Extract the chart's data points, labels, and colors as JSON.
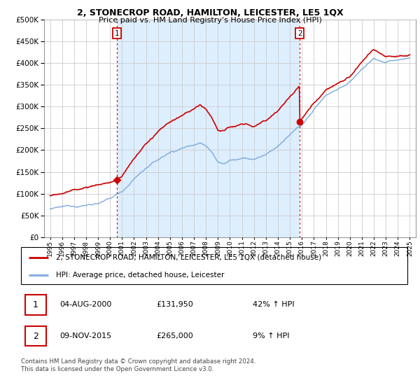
{
  "title": "2, STONECROP ROAD, HAMILTON, LEICESTER, LE5 1QX",
  "subtitle": "Price paid vs. HM Land Registry's House Price Index (HPI)",
  "hpi_label": "HPI: Average price, detached house, Leicester",
  "price_label": "2, STONECROP ROAD, HAMILTON, LEICESTER, LE5 1QX (detached house)",
  "sale1_date": "04-AUG-2000",
  "sale1_price": 131950,
  "sale1_hpi": "42% ↑ HPI",
  "sale2_date": "09-NOV-2015",
  "sale2_price": 265000,
  "sale2_hpi": "9% ↑ HPI",
  "footer": "Contains HM Land Registry data © Crown copyright and database right 2024.\nThis data is licensed under the Open Government Licence v3.0.",
  "price_color": "#cc0000",
  "hpi_color": "#7aaadd",
  "sale_line_color": "#cc0000",
  "shade_color": "#ddeeff",
  "ylim": [
    0,
    500000
  ],
  "yticks": [
    0,
    50000,
    100000,
    150000,
    200000,
    250000,
    300000,
    350000,
    400000,
    450000,
    500000
  ],
  "background_color": "#ffffff",
  "grid_color": "#cccccc",
  "sale1_t": 2000.583,
  "sale2_t": 2015.833
}
